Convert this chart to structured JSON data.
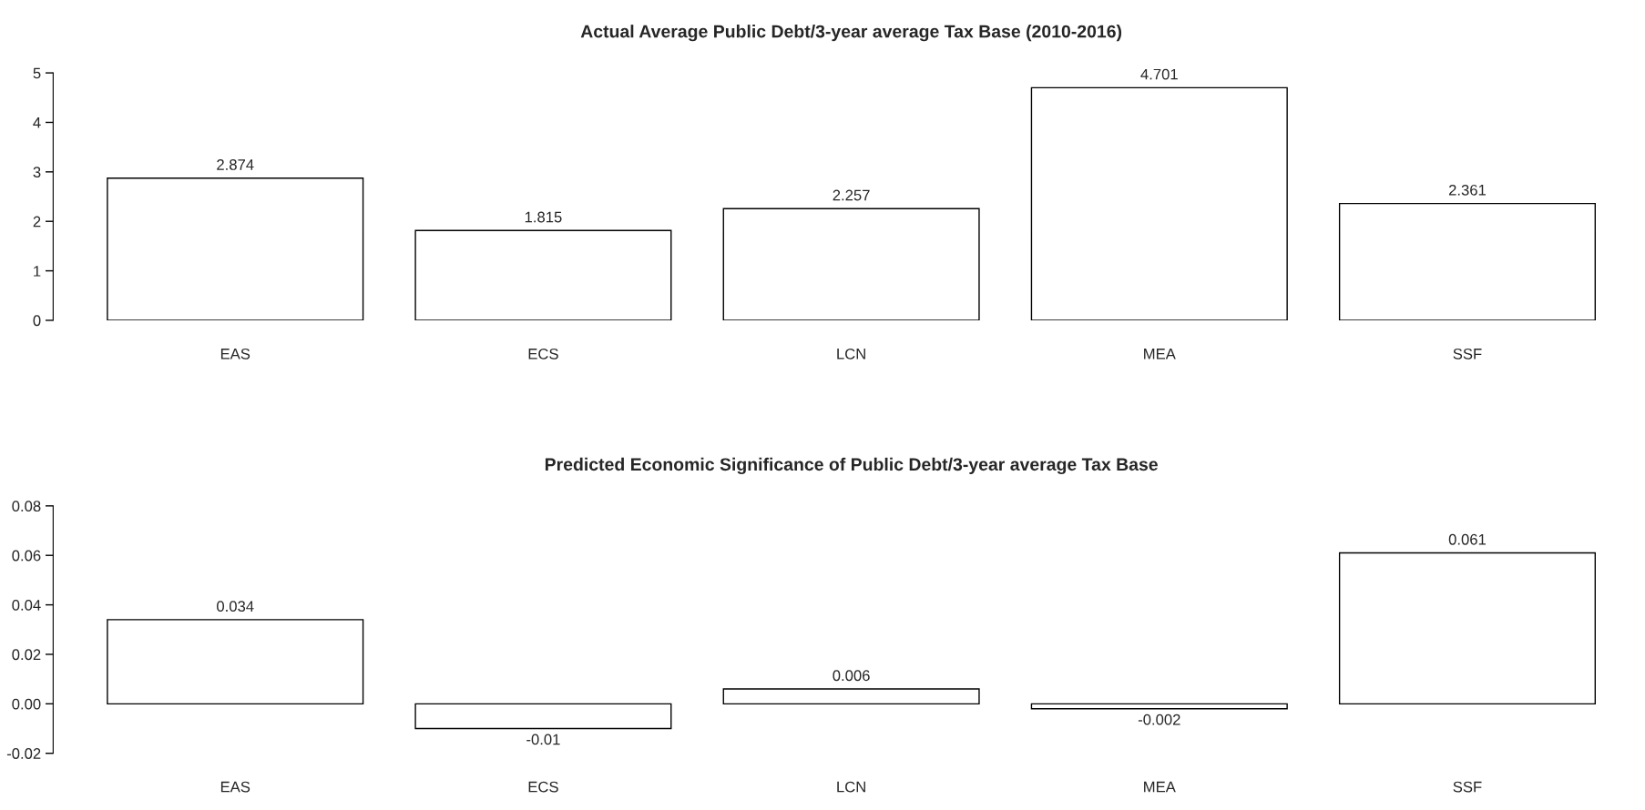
{
  "chart_data": [
    {
      "type": "bar",
      "title": "Actual Average Public Debt/3-year average Tax Base (2010-2016)",
      "categories": [
        "EAS",
        "ECS",
        "LCN",
        "MEA",
        "SSF"
      ],
      "series": [
        {
          "color": "#ffffff",
          "values": [
            2.874,
            1.815,
            2.257,
            4.701,
            2.361
          ]
        }
      ],
      "ylim": [
        0,
        5
      ],
      "yticks": [
        0,
        1,
        2,
        3,
        4,
        5
      ],
      "data_labels": true,
      "grid": false,
      "legend": false
    },
    {
      "type": "bar",
      "title": "Predicted Economic Significance of Public Debt/3-year average Tax Base",
      "categories": [
        "EAS",
        "ECS",
        "LCN",
        "MEA",
        "SSF"
      ],
      "series": [
        {
          "color": "#ffffff",
          "values": [
            0.034,
            -0.01,
            0.006,
            -0.002,
            0.061
          ]
        }
      ],
      "ylim": [
        -0.02,
        0.08
      ],
      "yticks": [
        {
          "value": -0.02,
          "label": "-0.02"
        },
        {
          "value": 0,
          "label": "0.00"
        },
        {
          "value": 0.02,
          "label": "0.02"
        },
        {
          "value": 0.04,
          "label": "0.04"
        },
        {
          "value": 0.06,
          "label": "0.06"
        },
        {
          "value": 0.08,
          "label": "0.08"
        }
      ],
      "data_labels": true,
      "grid": false,
      "legend": false
    }
  ]
}
